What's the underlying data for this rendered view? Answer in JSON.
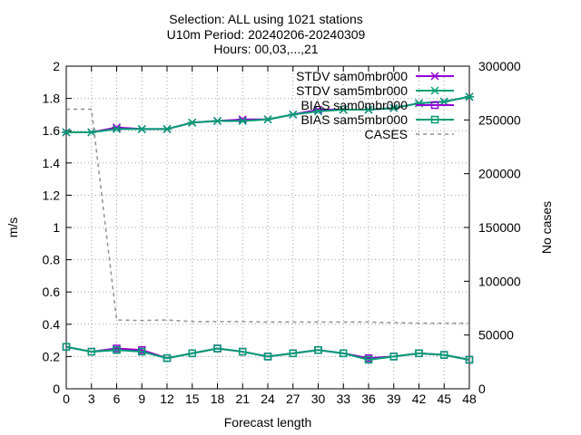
{
  "chart_data": {
    "type": "line",
    "title_lines": [
      "Selection: ALL using  1021 stations",
      "U10m   Period: 20240206-20240309",
      "Hours: 00,03,...,21"
    ],
    "xlabel": "Forecast length",
    "ylabel": "m/s",
    "y2label": "No cases",
    "x_ticks": [
      0,
      3,
      6,
      9,
      12,
      15,
      18,
      21,
      24,
      27,
      30,
      33,
      36,
      39,
      42,
      45,
      48
    ],
    "y_ticks": [
      "0",
      "0.2",
      "0.4",
      "0.6",
      "0.8",
      "1",
      "1.2",
      "1.4",
      "1.6",
      "1.8",
      "2"
    ],
    "y2_ticks": [
      "0",
      "50000",
      "100000",
      "150000",
      "200000",
      "250000",
      "300000"
    ],
    "xlim": [
      0,
      48
    ],
    "ylim": [
      0,
      2
    ],
    "y2lim": [
      0,
      300000
    ],
    "grid": true,
    "legend_position": "top-right",
    "x": [
      0,
      3,
      6,
      9,
      12,
      15,
      18,
      21,
      24,
      27,
      30,
      33,
      36,
      39,
      42,
      45,
      48
    ],
    "series": [
      {
        "name": "STDV sam0mbr000",
        "axis": "y1",
        "color": "#9400d3",
        "marker": "x-star",
        "dash": false,
        "values": [
          1.59,
          1.59,
          1.62,
          1.61,
          1.61,
          1.65,
          1.66,
          1.67,
          1.67,
          1.7,
          1.73,
          1.73,
          1.73,
          1.74,
          1.77,
          1.78,
          1.81
        ]
      },
      {
        "name": "STDV sam5mbr000",
        "axis": "y1",
        "color": "#009e73",
        "marker": "x-star",
        "dash": false,
        "values": [
          1.59,
          1.59,
          1.61,
          1.61,
          1.61,
          1.65,
          1.66,
          1.66,
          1.67,
          1.7,
          1.72,
          1.73,
          1.73,
          1.74,
          1.77,
          1.78,
          1.81
        ]
      },
      {
        "name": "BIAS sam0mbr000",
        "axis": "y1",
        "color": "#9400d3",
        "marker": "square",
        "dash": false,
        "values": [
          0.26,
          0.23,
          0.25,
          0.24,
          0.19,
          0.22,
          0.25,
          0.23,
          0.2,
          0.22,
          0.24,
          0.22,
          0.19,
          0.2,
          0.22,
          0.21,
          0.18
        ]
      },
      {
        "name": "BIAS sam5mbr000",
        "axis": "y1",
        "color": "#009e73",
        "marker": "square",
        "dash": false,
        "values": [
          0.26,
          0.23,
          0.24,
          0.23,
          0.19,
          0.22,
          0.25,
          0.23,
          0.2,
          0.22,
          0.24,
          0.22,
          0.18,
          0.2,
          0.22,
          0.21,
          0.18
        ]
      },
      {
        "name": "CASES",
        "axis": "y2",
        "color": "#909090",
        "marker": "none",
        "dash": true,
        "values": [
          260000,
          260000,
          64000,
          63500,
          64000,
          62500,
          62500,
          62500,
          62000,
          62000,
          62000,
          62000,
          62000,
          61500,
          61000,
          61000,
          61000
        ]
      }
    ]
  }
}
